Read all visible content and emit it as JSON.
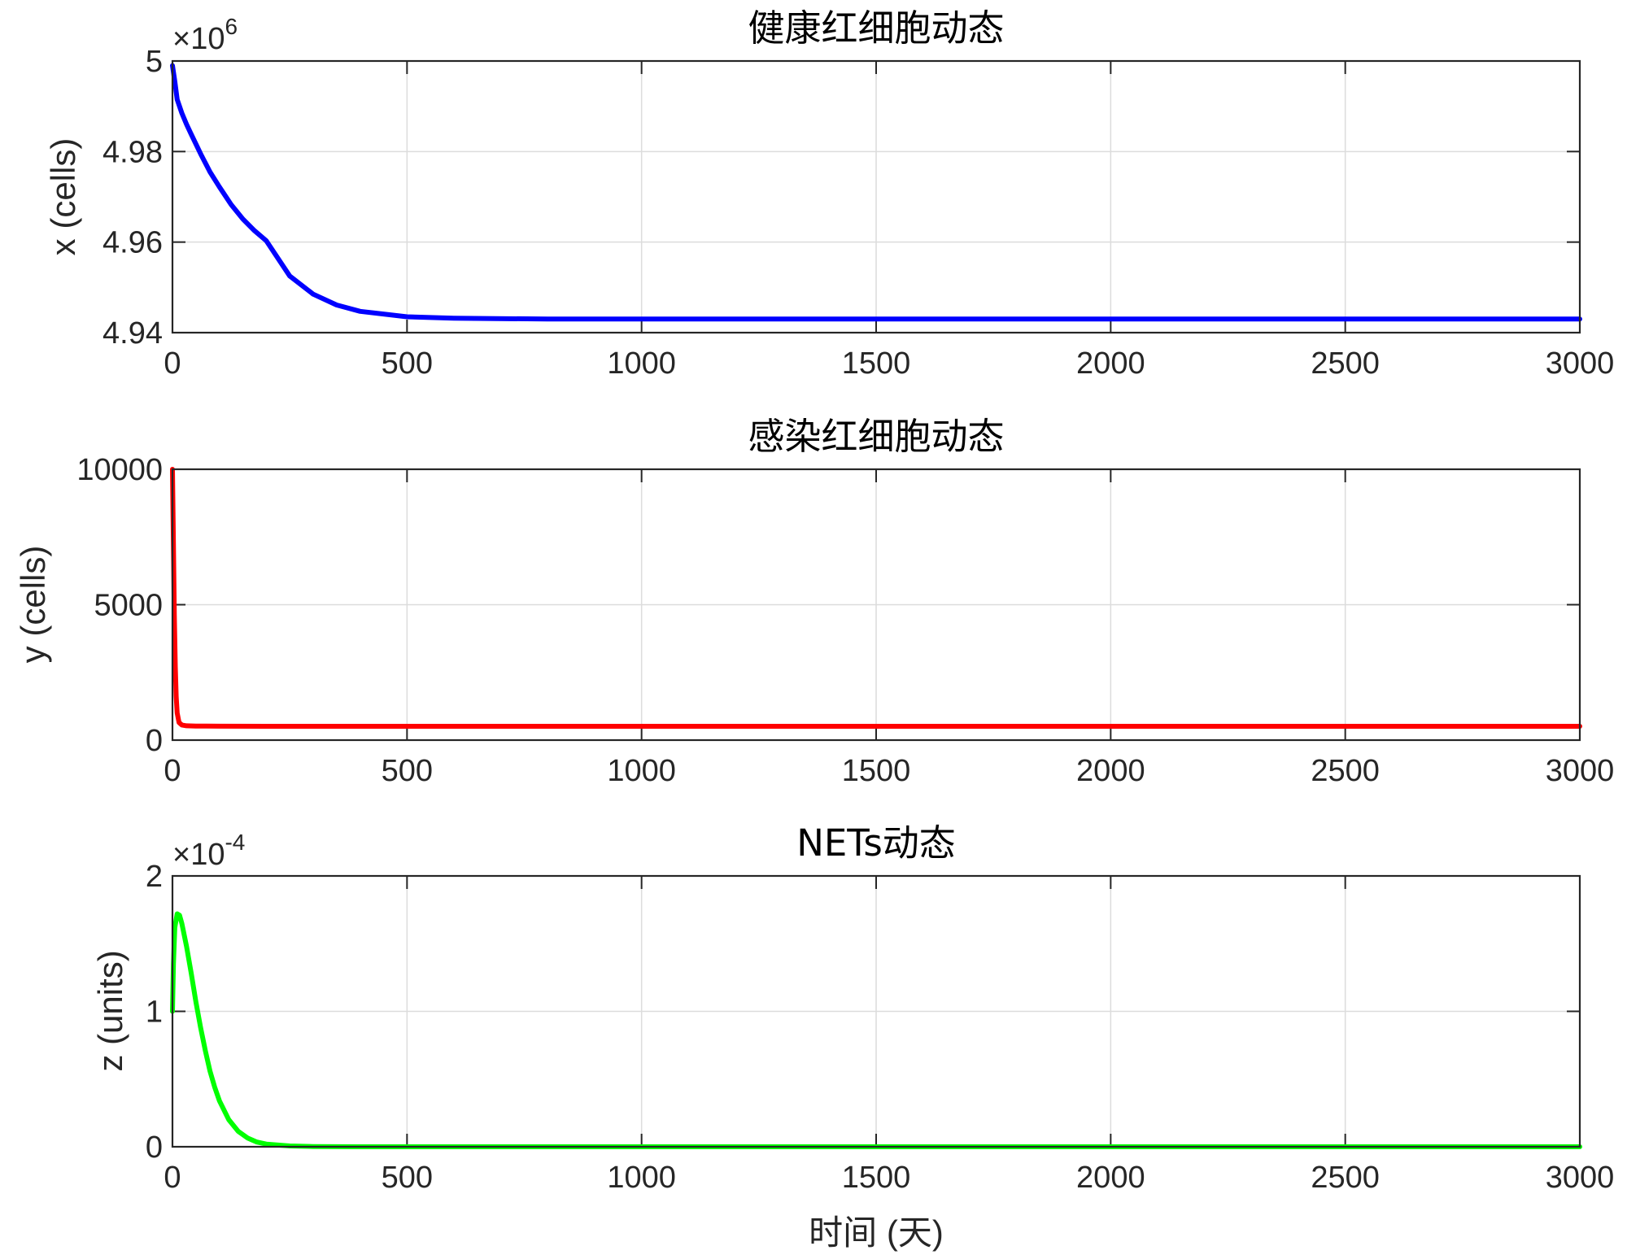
{
  "figure": {
    "xlabel": "时间 (天)"
  },
  "chart_data": [
    {
      "type": "line",
      "title": "健康红细胞动态",
      "xlabel": "",
      "ylabel": "x (cells)",
      "xlim": [
        0,
        3000
      ],
      "ylim": [
        4.94,
        5.0
      ],
      "y_multiplier": "×10^6",
      "exponent_prefix": "×10",
      "exponent": "6",
      "xticks": [
        0,
        500,
        1000,
        1500,
        2000,
        2500,
        3000
      ],
      "yticks": [
        4.94,
        4.96,
        4.98,
        5
      ],
      "ytick_labels": [
        "4.94",
        "4.96",
        "4.98",
        "5"
      ],
      "grid": true,
      "series": [
        {
          "color": "#0000ff",
          "x": [
            0,
            5,
            10,
            20,
            30,
            40,
            60,
            80,
            100,
            125,
            150,
            175,
            200,
            250,
            300,
            350,
            400,
            500,
            600,
            800,
            1000,
            1500,
            2000,
            2500,
            3000
          ],
          "values": [
            4.999,
            4.9955,
            4.9915,
            4.9885,
            4.986,
            4.9838,
            4.9795,
            4.9755,
            4.9722,
            4.9683,
            4.9651,
            4.9625,
            4.9603,
            4.9525,
            4.9485,
            4.9461,
            4.9447,
            4.9435,
            4.9432,
            4.943,
            4.943,
            4.943,
            4.943,
            4.943,
            4.943
          ]
        }
      ]
    },
    {
      "type": "line",
      "title": "感染红细胞动态",
      "xlabel": "",
      "ylabel": "y (cells)",
      "xlim": [
        0,
        3000
      ],
      "ylim": [
        0,
        10000
      ],
      "xticks": [
        0,
        500,
        1000,
        1500,
        2000,
        2500,
        3000
      ],
      "yticks": [
        0,
        5000,
        10000
      ],
      "ytick_labels": [
        "0",
        "5000",
        "10000"
      ],
      "grid": true,
      "series": [
        {
          "color": "#ff0000",
          "x": [
            0,
            2,
            4,
            6,
            8,
            10,
            14,
            20,
            30,
            50,
            100,
            200,
            500,
            1000,
            1500,
            2000,
            2500,
            3000
          ],
          "values": [
            10000,
            7200,
            4600,
            2700,
            1600,
            1000,
            650,
            560,
            530,
            520,
            515,
            510,
            510,
            510,
            510,
            510,
            510,
            510
          ]
        }
      ]
    },
    {
      "type": "line",
      "title": "NETs动态",
      "xlabel": "",
      "ylabel": "z (units)",
      "xlim": [
        0,
        3000
      ],
      "ylim": [
        0,
        2
      ],
      "y_multiplier": "×10^-4",
      "exponent_prefix": "×10",
      "exponent": "-4",
      "xticks": [
        0,
        500,
        1000,
        1500,
        2000,
        2500,
        3000
      ],
      "yticks": [
        0,
        1,
        2
      ],
      "ytick_labels": [
        "0",
        "1",
        "2"
      ],
      "grid": true,
      "series": [
        {
          "color": "#00ff00",
          "x": [
            0,
            2,
            5,
            10,
            15,
            20,
            30,
            40,
            50,
            60,
            70,
            80,
            90,
            100,
            120,
            140,
            160,
            180,
            200,
            250,
            300,
            400,
            500,
            1000,
            1500,
            2000,
            2500,
            3000
          ],
          "values": [
            1.0,
            1.35,
            1.62,
            1.72,
            1.71,
            1.65,
            1.48,
            1.28,
            1.07,
            0.88,
            0.71,
            0.56,
            0.44,
            0.34,
            0.2,
            0.115,
            0.065,
            0.035,
            0.02,
            0.006,
            0.002,
            0.0,
            0.0,
            0.0,
            0.0,
            0.0,
            0.0,
            0.0
          ]
        }
      ]
    }
  ]
}
